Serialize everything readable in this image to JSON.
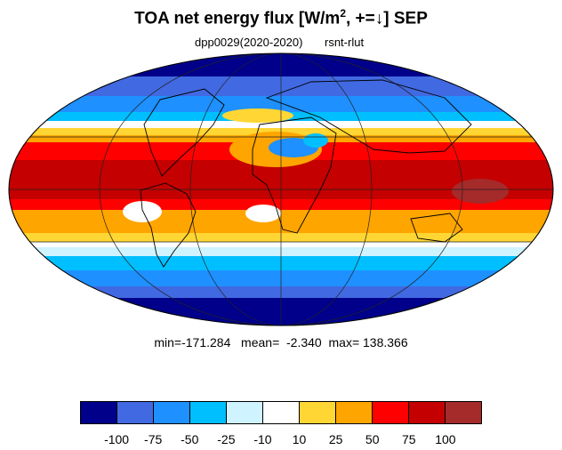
{
  "title": {
    "main": "TOA net energy flux  [W/m",
    "sup": "2",
    "tail": ", +=↓] SEP"
  },
  "subtitle": {
    "left": "dpp0029(2020-2020)",
    "right": "rsnt-rlut"
  },
  "stats": "min=-171.284   mean=  -2.340  max= 138.366",
  "colorbar": {
    "colors": [
      "#00008b",
      "#4169e1",
      "#1e90ff",
      "#00bfff",
      "#cff3ff",
      "#ffffff",
      "#ffd633",
      "#ffa500",
      "#ff0000",
      "#c40000",
      "#a52a2a"
    ],
    "labels": [
      "-100",
      "-75",
      "-50",
      "-25",
      "-10",
      "10",
      "25",
      "50",
      "75",
      "100"
    ]
  }
}
